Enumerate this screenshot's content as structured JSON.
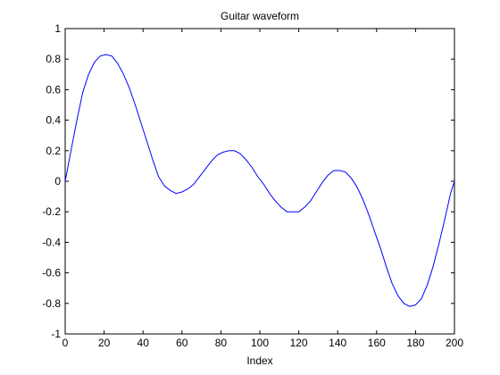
{
  "figure": {
    "background": "#ffffff",
    "axes_color": "#000000",
    "line_color": "#0000ff"
  },
  "chart_data": {
    "type": "line",
    "title": "Guitar waveform",
    "xlabel": "Index",
    "ylabel": "",
    "xlim": [
      0,
      200
    ],
    "ylim": [
      -1,
      1
    ],
    "xticks": [
      0,
      20,
      40,
      60,
      80,
      100,
      120,
      140,
      160,
      180,
      200
    ],
    "xtick_labels": [
      "0",
      "20",
      "40",
      "60",
      "80",
      "100",
      "120",
      "140",
      "160",
      "180",
      "200"
    ],
    "yticks": [
      -1,
      -0.8,
      -0.6,
      -0.4,
      -0.2,
      0,
      0.2,
      0.4,
      0.6,
      0.8,
      1
    ],
    "ytick_labels": [
      "-1",
      "-0.8",
      "-0.6",
      "-0.4",
      "-0.2",
      "0",
      "0.2",
      "0.4",
      "0.6",
      "0.8",
      "1"
    ],
    "grid": false,
    "legend": "none",
    "series": [
      {
        "x": [
          0,
          3,
          6,
          9,
          12,
          15,
          18,
          21,
          24,
          27,
          30,
          33,
          36,
          39,
          42,
          45,
          48,
          51,
          54,
          57,
          60,
          63,
          66,
          69,
          72,
          75,
          78,
          81,
          84,
          87,
          90,
          93,
          96,
          99,
          102,
          105,
          108,
          111,
          114,
          117,
          120,
          123,
          126,
          129,
          132,
          135,
          138,
          141,
          144,
          147,
          150,
          153,
          156,
          159,
          162,
          165,
          168,
          171,
          174,
          177,
          180,
          183,
          186,
          189,
          192,
          195,
          198,
          200
        ],
        "y": [
          0.0,
          0.2,
          0.4,
          0.58,
          0.7,
          0.78,
          0.82,
          0.83,
          0.82,
          0.77,
          0.7,
          0.61,
          0.5,
          0.38,
          0.26,
          0.14,
          0.03,
          -0.03,
          -0.06,
          -0.08,
          -0.07,
          -0.05,
          -0.02,
          0.03,
          0.08,
          0.13,
          0.17,
          0.19,
          0.2,
          0.2,
          0.18,
          0.14,
          0.09,
          0.03,
          -0.02,
          -0.08,
          -0.13,
          -0.17,
          -0.2,
          -0.2,
          -0.2,
          -0.17,
          -0.13,
          -0.07,
          -0.01,
          0.04,
          0.07,
          0.07,
          0.06,
          0.02,
          -0.04,
          -0.12,
          -0.22,
          -0.33,
          -0.44,
          -0.56,
          -0.67,
          -0.75,
          -0.8,
          -0.82,
          -0.81,
          -0.77,
          -0.68,
          -0.56,
          -0.41,
          -0.25,
          -0.08,
          0.0
        ]
      }
    ]
  }
}
